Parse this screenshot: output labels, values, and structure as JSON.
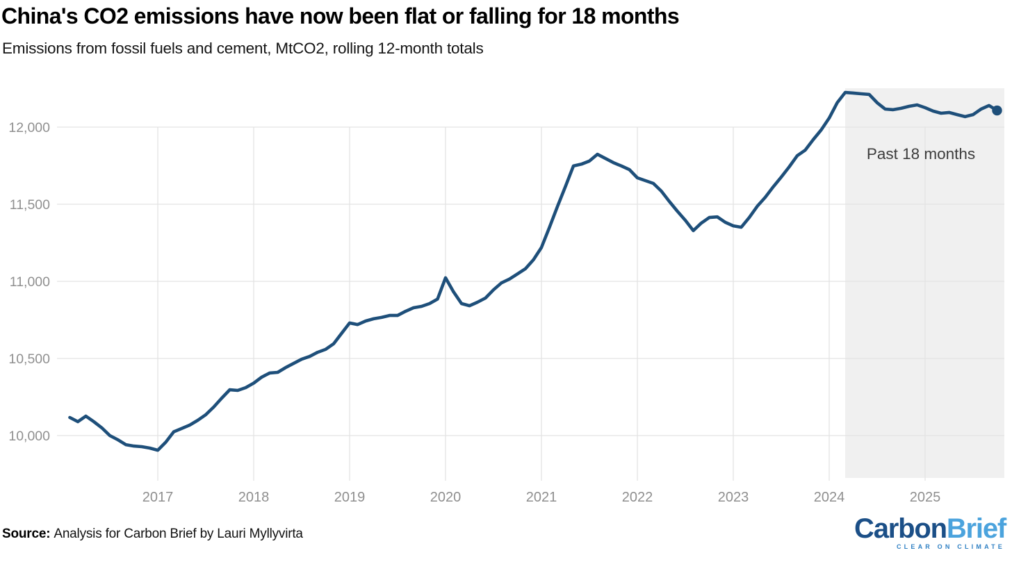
{
  "header": {
    "title": "China's CO2 emissions have now been flat or falling for 18 months",
    "subtitle": "Emissions from fossil fuels and cement, MtCO2, rolling 12-month totals"
  },
  "annotation": {
    "label": "Past 18 months"
  },
  "footer": {
    "source_label": "Source:",
    "source_text": "Analysis for Carbon Brief by Lauri Myllyvirta"
  },
  "logo": {
    "part1": "Carbon",
    "part2": "Brief",
    "tagline": "CLEAR ON CLIMATE"
  },
  "colors": {
    "line": "#1e4f7a",
    "marker": "#1e4f7a",
    "grid": "#e3e3e3",
    "highlight_region": "#f0f0f0",
    "axis_text": "#8f8f8f",
    "annotation_text": "#3c3c3c",
    "logo_dark_blue": "#1b4f87",
    "logo_light_blue": "#4ba3dd",
    "logo_tagline_blue": "#2f80c3"
  },
  "chart_data": {
    "type": "line",
    "title": "China's CO2 emissions have now been flat or falling for 18 months",
    "subtitle": "Emissions from fossil fuels and cement, MtCO2, rolling 12-month totals",
    "unit": "MtCO2",
    "grid": true,
    "x_tick_labels": [
      "2017",
      "2018",
      "2019",
      "2020",
      "2021",
      "2022",
      "2023",
      "2024",
      "2025"
    ],
    "y_ticks": [
      10000,
      10500,
      11000,
      11500,
      12000
    ],
    "ylim": [
      9620,
      12320
    ],
    "xlim_months": [
      "2016-02",
      "2025-11"
    ],
    "highlight_region": {
      "label": "Past 18 months",
      "start_month": "2024-03",
      "end_month": "2025-10"
    },
    "last_point": {
      "month": "2025-10",
      "value": 12108,
      "marker": "dot"
    },
    "series": [
      {
        "name": "CO2 emissions, rolling 12-month total (MtCO2)",
        "start_month": "2016-02",
        "interval": "monthly",
        "values": [
          10117,
          10090,
          10126,
          10090,
          10050,
          10000,
          9973,
          9941,
          9932,
          9928,
          9919,
          9905,
          9957,
          10025,
          10046,
          10068,
          10099,
          10135,
          10185,
          10243,
          10297,
          10293,
          10311,
          10340,
          10379,
          10406,
          10410,
          10441,
          10468,
          10495,
          10513,
          10540,
          10559,
          10595,
          10663,
          10730,
          10720,
          10743,
          10757,
          10766,
          10779,
          10779,
          10806,
          10829,
          10838,
          10856,
          10885,
          11023,
          10932,
          10856,
          10842,
          10865,
          10892,
          10945,
          10990,
          11015,
          11048,
          11082,
          11140,
          11220,
          11350,
          11485,
          11615,
          11748,
          11760,
          11780,
          11824,
          11797,
          11770,
          11748,
          11725,
          11671,
          11653,
          11635,
          11585,
          11518,
          11455,
          11396,
          11329,
          11378,
          11414,
          11418,
          11383,
          11360,
          11351,
          11414,
          11487,
          11545,
          11613,
          11676,
          11743,
          11815,
          11851,
          11919,
          11982,
          12059,
          12158,
          12225,
          12221,
          12216,
          12212,
          12158,
          12117,
          12113,
          12122,
          12135,
          12144,
          12126,
          12104,
          12090,
          12095,
          12081,
          12068,
          12081,
          12117,
          12140,
          12108
        ]
      }
    ]
  }
}
